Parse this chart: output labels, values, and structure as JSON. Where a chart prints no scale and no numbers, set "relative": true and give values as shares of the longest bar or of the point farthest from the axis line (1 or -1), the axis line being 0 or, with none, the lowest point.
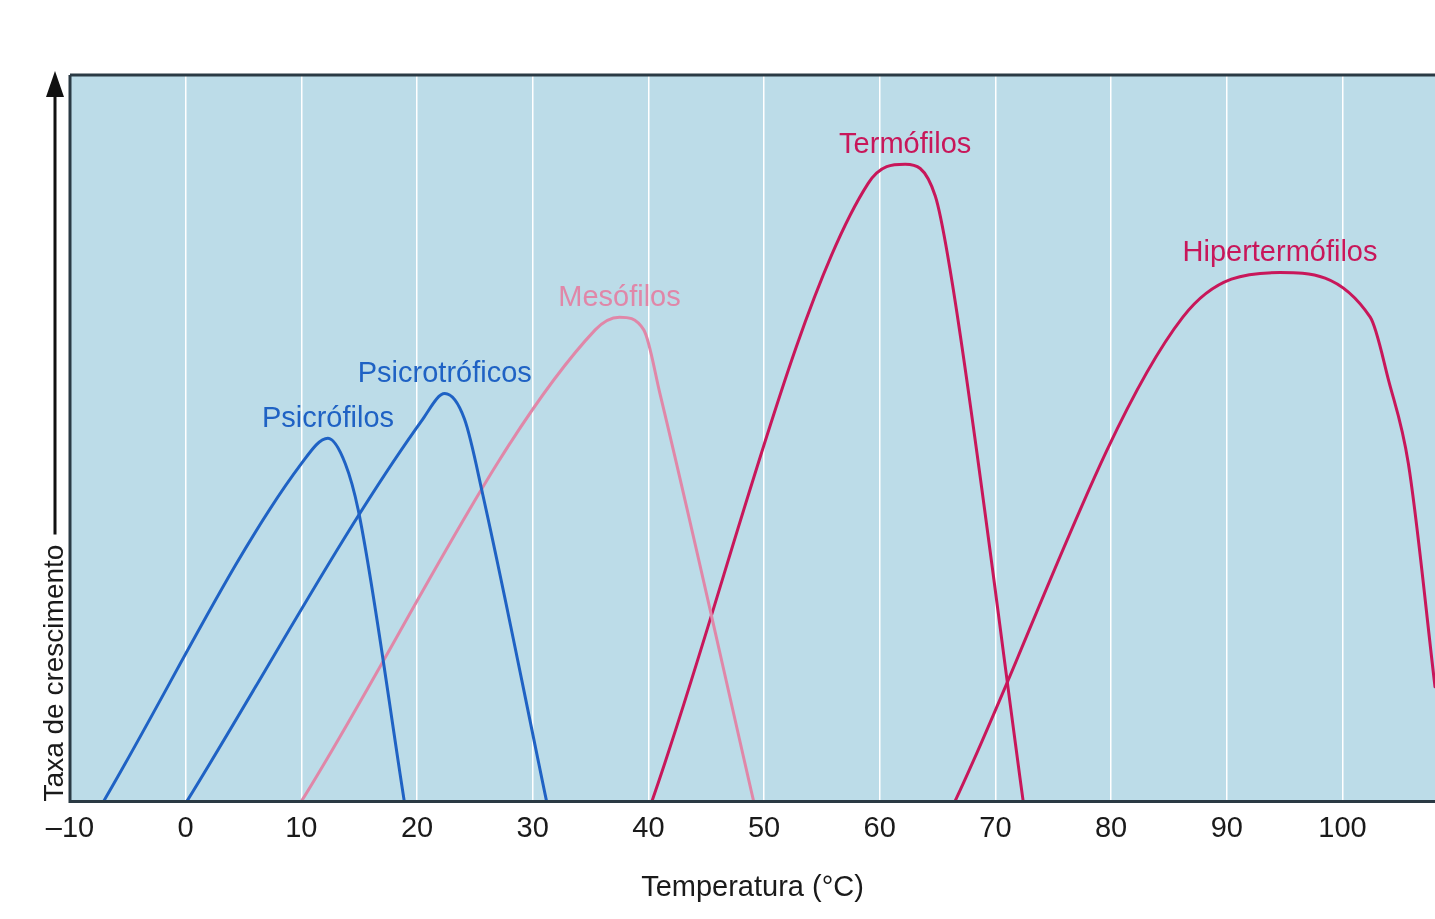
{
  "chart_data": {
    "type": "line",
    "xlabel": "Temperatura (°C)",
    "ylabel": "Taxa de crescimento",
    "relative": true,
    "grid": "x",
    "legend": false,
    "marker": "none",
    "line_style": "solid",
    "xlim": [
      -10,
      108
    ],
    "xticks": [
      {
        "value": -10,
        "label": "–10"
      },
      0,
      10,
      20,
      30,
      40,
      50,
      60,
      70,
      80,
      90,
      100
    ],
    "series": [
      {
        "name": "Psicrófilos",
        "color": "#1f62c4",
        "x": [
          -7.1,
          10.0,
          12.3,
          13.8,
          15.0,
          18.9
        ],
        "values": [
          0,
          0.53,
          0.57,
          0.53,
          0.45,
          0
        ]
      },
      {
        "name": "Psicrotróficos",
        "color": "#1f62c4",
        "x": [
          0.1,
          20.5,
          22.4,
          24.1,
          25.7,
          31.2
        ],
        "values": [
          0,
          0.6,
          0.64,
          0.6,
          0.48,
          0
        ]
      },
      {
        "name": "Mesófilos",
        "color": "#e087a8",
        "x": [
          10.0,
          35.4,
          37.5,
          39.6,
          41.0,
          49.1
        ],
        "values": [
          0,
          0.74,
          0.76,
          0.74,
          0.64,
          0
        ]
      },
      {
        "name": "Termófilos",
        "color": "#c8175a",
        "x": [
          40.3,
          59.0,
          62.2,
          64.8,
          66.3,
          72.4
        ],
        "values": [
          0,
          0.97,
          1,
          0.95,
          0.81,
          0
        ]
      },
      {
        "name": "Hipertermófilos",
        "color": "#c8175a",
        "x": [
          66.5,
          86.2,
          94.6,
          102.4,
          104.0,
          105.7,
          108.0
        ],
        "values": [
          0,
          0.76,
          0.83,
          0.76,
          0.66,
          0.53,
          0.18
        ]
      }
    ]
  }
}
